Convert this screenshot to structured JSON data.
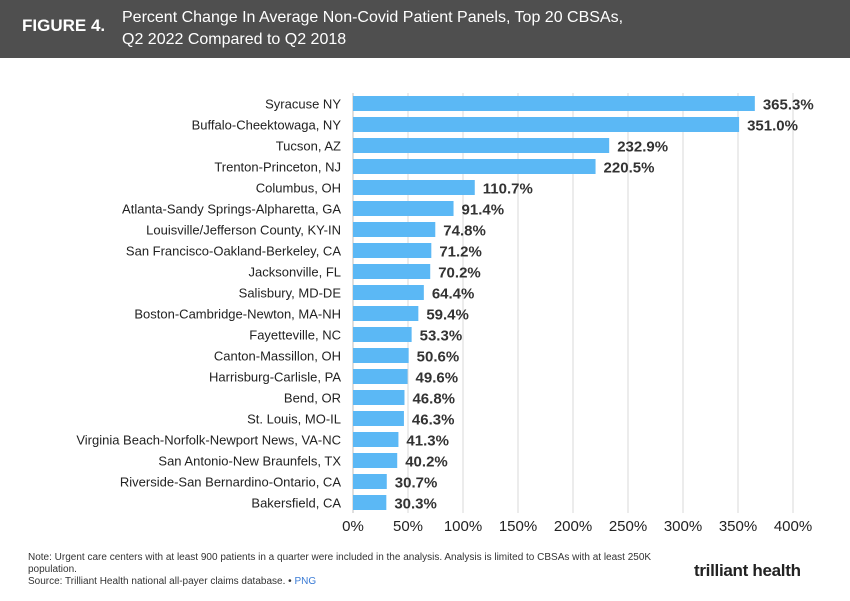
{
  "header": {
    "figure_label": "FIGURE 4.",
    "title_line1": "Percent Change In Average Non-Covid Patient Panels, Top 20 CBSAs,",
    "title_line2": "Q2 2022 Compared to Q2 2018"
  },
  "colors": {
    "header_bg": "#4f4f4f",
    "bar": "#5bb8f5",
    "grid": "#d9d9d9"
  },
  "chart_data": {
    "type": "bar",
    "orientation": "horizontal",
    "title": "Percent Change In Average Non-Covid Patient Panels, Top 20 CBSAs, Q2 2022 Compared to Q2 2018",
    "categories": [
      "Syracuse NY",
      "Buffalo-Cheektowaga, NY",
      "Tucson, AZ",
      "Trenton-Princeton, NJ",
      "Columbus, OH",
      "Atlanta-Sandy Springs-Alpharetta, GA",
      "Louisville/Jefferson County, KY-IN",
      "San Francisco-Oakland-Berkeley, CA",
      "Jacksonville, FL",
      "Salisbury, MD-DE",
      "Boston-Cambridge-Newton, MA-NH",
      "Fayetteville, NC",
      "Canton-Massillon, OH",
      "Harrisburg-Carlisle, PA",
      "Bend, OR",
      "St. Louis, MO-IL",
      "Virginia Beach-Norfolk-Newport News, VA-NC",
      "San Antonio-New Braunfels, TX",
      "Riverside-San Bernardino-Ontario, CA",
      "Bakersfield, CA"
    ],
    "values": [
      365.3,
      351.0,
      232.9,
      220.5,
      110.7,
      91.4,
      74.8,
      71.2,
      70.2,
      64.4,
      59.4,
      53.3,
      50.6,
      49.6,
      46.8,
      46.3,
      41.3,
      40.2,
      30.7,
      30.3
    ],
    "value_labels": [
      "365.3%",
      "351.0%",
      "232.9%",
      "220.5%",
      "110.7%",
      "91.4%",
      "74.8%",
      "71.2%",
      "70.2%",
      "64.4%",
      "59.4%",
      "53.3%",
      "50.6%",
      "49.6%",
      "46.8%",
      "46.3%",
      "41.3%",
      "40.2%",
      "30.7%",
      "30.3%"
    ],
    "xlim": [
      0,
      400
    ],
    "xticks": [
      0,
      50,
      100,
      150,
      200,
      250,
      300,
      350,
      400
    ],
    "xtick_labels": [
      "0%",
      "50%",
      "100%",
      "150%",
      "200%",
      "250%",
      "300%",
      "350%",
      "400%"
    ],
    "xlabel": "",
    "ylabel": "",
    "grid": true
  },
  "footer": {
    "note": "Note: Urgent care centers with at least 900 patients in a quarter were included in the analysis. Analysis is limited to CBSAs with at least 250K population.",
    "source": "Source: Trilliant Health national all-payer claims database.",
    "separator": "•",
    "png_link": "PNG",
    "logo": "trilliant health"
  }
}
